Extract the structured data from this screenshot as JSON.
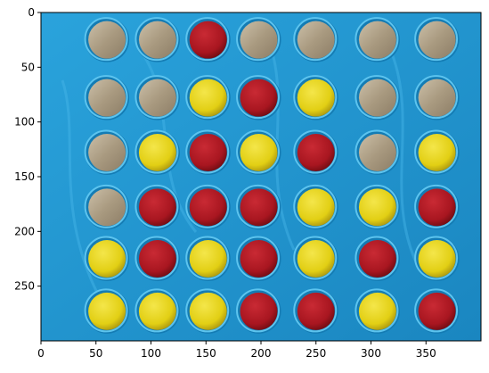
{
  "figure": {
    "x_axis": {
      "ticks": [
        0,
        50,
        100,
        150,
        200,
        250,
        300,
        350
      ],
      "range": [
        0,
        400
      ]
    },
    "y_axis": {
      "ticks": [
        0,
        50,
        100,
        150,
        200,
        250
      ],
      "range": [
        300,
        0
      ],
      "inverted": true
    }
  },
  "board": {
    "frame_color": "#1f94cf",
    "rim_color": "#5cc4ef",
    "colors": {
      "red": "#a81620",
      "yellow": "#e2cf14",
      "empty": "#a99a80"
    },
    "rows": 6,
    "cols": 7,
    "grid": [
      [
        "empty",
        "empty",
        "red",
        "empty",
        "empty",
        "empty",
        "empty"
      ],
      [
        "empty",
        "empty",
        "yellow",
        "red",
        "yellow",
        "empty",
        "empty"
      ],
      [
        "empty",
        "yellow",
        "red",
        "yellow",
        "red",
        "empty",
        "yellow"
      ],
      [
        "empty",
        "red",
        "red",
        "red",
        "yellow",
        "yellow",
        "red"
      ],
      [
        "yellow",
        "red",
        "yellow",
        "red",
        "yellow",
        "red",
        "yellow"
      ],
      [
        "yellow",
        "yellow",
        "yellow",
        "red",
        "red",
        "yellow",
        "red"
      ]
    ]
  }
}
